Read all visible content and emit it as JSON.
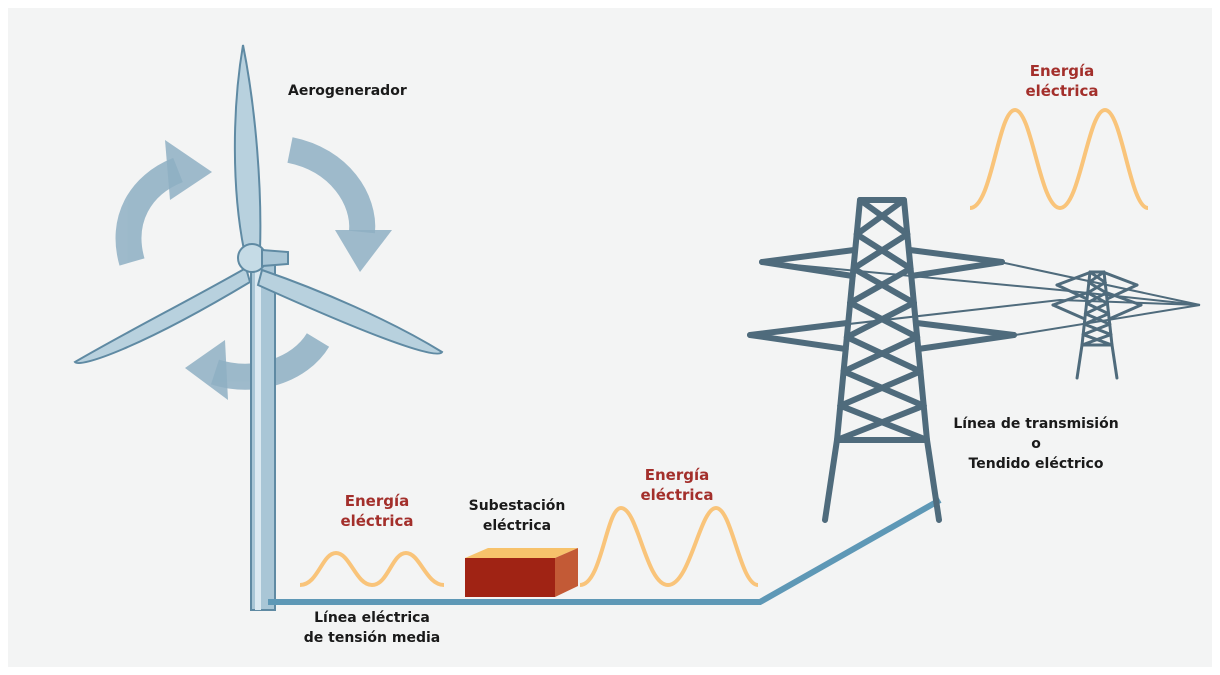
{
  "labels": {
    "wind_turbine": "Aerogenerador",
    "energy_1": [
      "Energía",
      "eléctrica"
    ],
    "substation": [
      "Subestación",
      "eléctrica"
    ],
    "energy_2": [
      "Energía",
      "eléctrica"
    ],
    "energy_3": [
      "Energía",
      "eléctrica"
    ],
    "medium_line": [
      "Línea eléctrica",
      "de tensión media"
    ],
    "transmission": [
      "Línea de transmisión",
      "o",
      "Tendido eléctrico"
    ]
  }
}
